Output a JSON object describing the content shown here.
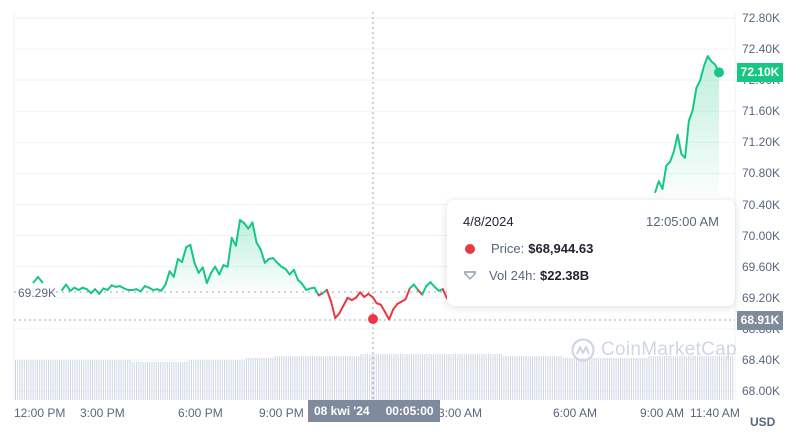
{
  "chart_data": {
    "type": "line",
    "title": "",
    "currency": "USD",
    "ylim": [
      68000,
      72800
    ],
    "y_ticks": [
      "72.80K",
      "72.40K",
      "72.00K",
      "71.60K",
      "71.20K",
      "70.80K",
      "70.40K",
      "70.00K",
      "69.60K",
      "69.20K",
      "68.80K",
      "68.40K",
      "68.00K"
    ],
    "x_ticks": [
      "12:00 PM",
      "3:00 PM",
      "6:00 PM",
      "9:00 PM",
      "3:00 AM",
      "6:00 AM",
      "9:00 AM",
      "11:40 AM"
    ],
    "baseline": {
      "value": 69290,
      "label": "69.29K"
    },
    "current_price": {
      "value": 72100,
      "label": "72.10K",
      "color": "#16c784"
    },
    "hover_price": {
      "value": 68910,
      "label": "68.91K",
      "color": "#808a9d"
    },
    "colors": {
      "up": "#16c784",
      "down": "#ea3943",
      "volume": "#cfd6e4",
      "grid": "#f0f2f5"
    },
    "series": [
      {
        "name": "Price",
        "x_start_label": "12:00 PM",
        "x_end_label": "11:40 AM",
        "values": [
          69300,
          69370,
          69290,
          69330,
          69300,
          69330,
          69310,
          69260,
          69310,
          69250,
          69320,
          69300,
          69360,
          69340,
          69350,
          69320,
          69300,
          69300,
          69310,
          69280,
          69350,
          69330,
          69300,
          69310,
          69290,
          69370,
          69540,
          69470,
          69700,
          69660,
          69850,
          69880,
          69650,
          69520,
          69590,
          69390,
          69520,
          69600,
          69500,
          69620,
          69600,
          69970,
          69870,
          70200,
          70160,
          70090,
          70170,
          69910,
          69820,
          69650,
          69700,
          69710,
          69650,
          69600,
          69570,
          69500,
          69560,
          69430,
          69380,
          69300,
          69320,
          69330,
          69230,
          69260,
          69300,
          69150,
          68940,
          69000,
          69100,
          69200,
          69170,
          69200,
          69270,
          69210,
          69250,
          69210,
          69130,
          69110,
          69020,
          68920,
          69050,
          69120,
          69150,
          69180,
          69320,
          69370,
          69300,
          69240,
          69350,
          69400,
          69340,
          69290,
          69310,
          69190
        ],
        "tail_values": [
          70550,
          70700,
          70600,
          70900,
          70950,
          71080,
          71300,
          71050,
          71000,
          71480,
          71610,
          71900,
          72000,
          72180,
          72310,
          72240,
          72200,
          72100
        ]
      },
      {
        "name": "Vol 24h",
        "unit": "USD",
        "values": [
          22.1,
          22.1,
          22.1,
          22.1,
          22.0,
          22.0,
          22.1,
          22.1,
          22.2,
          22.3,
          22.3,
          22.3,
          22.4,
          22.4,
          22.4,
          22.4,
          22.4,
          22.3,
          22.3,
          22.2,
          22.2,
          22.2,
          22.3,
          22.3,
          22.3
        ]
      }
    ],
    "watermark": "CoinMarketCap"
  },
  "axis": {
    "y_labels": [
      "72.80K",
      "72.40K",
      "72.00K",
      "71.60K",
      "71.20K",
      "70.80K",
      "70.40K",
      "70.00K",
      "69.60K",
      "69.20K",
      "68.80K",
      "68.40K",
      "68.00K"
    ],
    "x_labels": [
      "12:00 PM",
      "3:00 PM",
      "6:00 PM",
      "9:00 PM",
      "3:00 AM",
      "6:00 AM",
      "9:00 AM",
      "11:40 AM"
    ],
    "currency": "USD"
  },
  "badges": {
    "current": "72.10K",
    "hover": "68.91K",
    "baseline": "69.29K"
  },
  "crosshair": {
    "date": "08 kwi '24",
    "time": "00:05:00"
  },
  "tooltip": {
    "date": "4/8/2024",
    "time": "12:05:00 AM",
    "price_label": "Price:",
    "price_value": "$68,944.63",
    "volume_label": "Vol 24h:",
    "volume_value": "$22.38B"
  },
  "watermark": "CoinMarketCap"
}
